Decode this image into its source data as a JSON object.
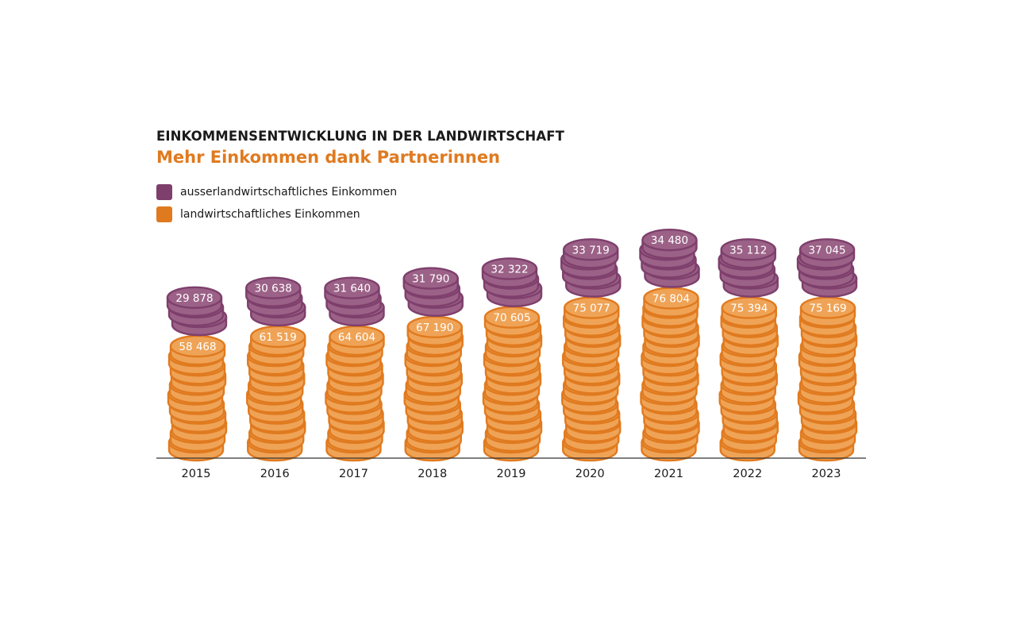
{
  "header": {
    "title": "EINKOMMENSENTWICKLUNG IN DER LANDWIRTSCHAFT",
    "subtitle": "Mehr Einkommen dank Partnerinnen"
  },
  "legend": [
    {
      "label": "ausserlandwirtschaftliches Einkommen",
      "color": "#7e3f6c"
    },
    {
      "label": "landwirtschaftliches Einkommen",
      "color": "#e07a1f"
    }
  ],
  "colors": {
    "title": "#1a1a1a",
    "subtitle": "#e07a1f",
    "purple_fill": "#9b6187",
    "purple_stroke": "#7e3f6c",
    "orange_fill": "#efa356",
    "orange_stroke": "#e07a1f",
    "axis": "#333333"
  },
  "chart_data": {
    "type": "bar",
    "style": "stacked coin pictogram",
    "categories": [
      "2015",
      "2016",
      "2017",
      "2018",
      "2019",
      "2020",
      "2021",
      "2022",
      "2023"
    ],
    "series": [
      {
        "name": "landwirtschaftliches Einkommen",
        "values": [
          58468,
          61519,
          64604,
          67190,
          70605,
          75077,
          76804,
          75394,
          75169
        ],
        "labels": [
          "58 468",
          "61 519",
          "64 604",
          "67 190",
          "70 605",
          "75 077",
          "76 804",
          "75 394",
          "75 169"
        ]
      },
      {
        "name": "ausserlandwirtschaftliches Einkommen",
        "values": [
          29878,
          30638,
          31640,
          31790,
          32322,
          33719,
          34480,
          35112,
          37045
        ],
        "labels": [
          "29 878",
          "30 638",
          "31 640",
          "31 790",
          "32 322",
          "33 719",
          "34 480",
          "35 112",
          "37 045"
        ]
      }
    ],
    "coins": {
      "landwirtschaftliches Einkommen": [
        11,
        12,
        12,
        13,
        14,
        15,
        16,
        15,
        15
      ],
      "ausserlandwirtschaftliches Einkommen": [
        3,
        3,
        3,
        3,
        3,
        4,
        4,
        4,
        4
      ]
    }
  }
}
